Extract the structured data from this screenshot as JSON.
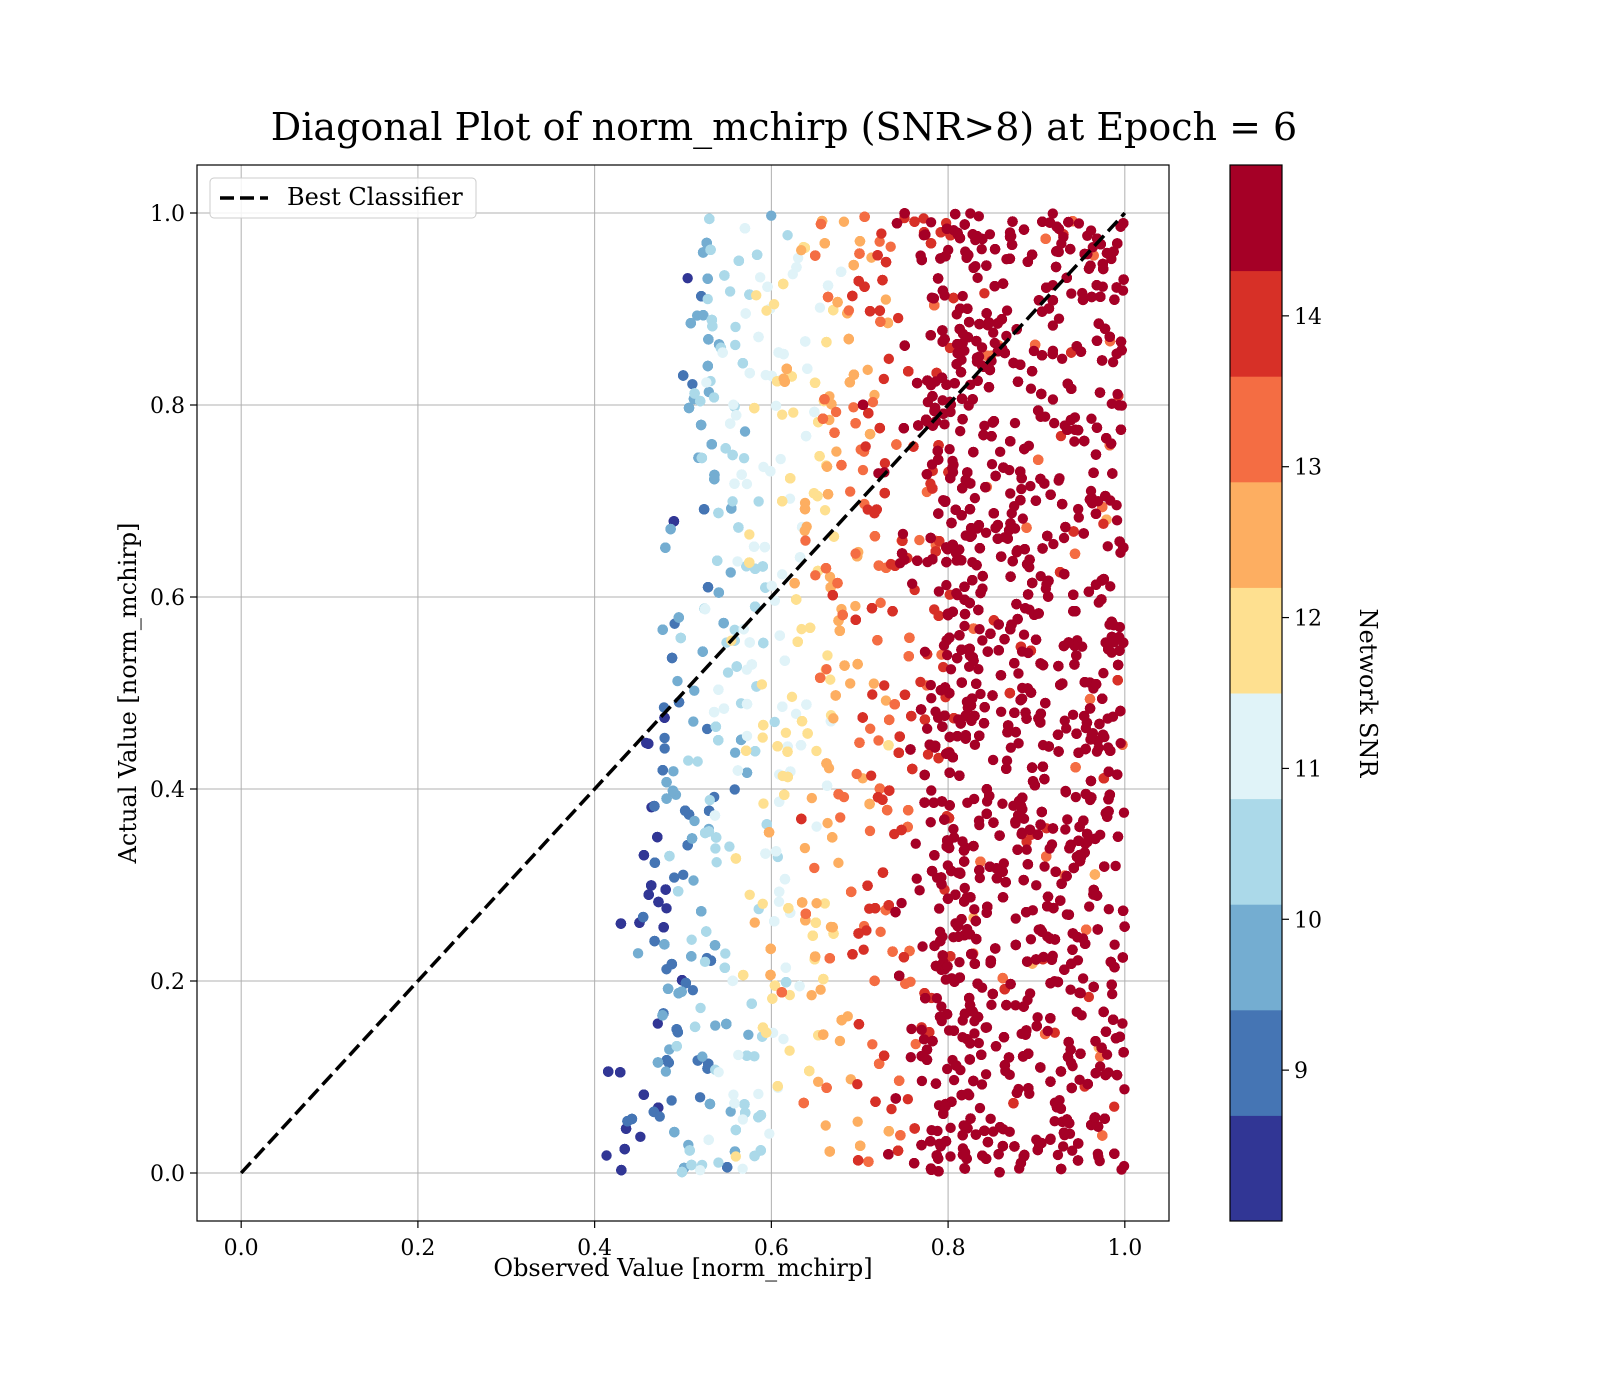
{
  "chart_data": {
    "type": "scatter",
    "title": "Diagonal Plot of norm_mchirp (SNR>8) at Epoch = 6",
    "xlabel": "Observed Value [norm_mchirp]",
    "ylabel": "Actual Value [norm_mchirp]",
    "xlim": [
      -0.05,
      1.05
    ],
    "ylim": [
      -0.05,
      1.05
    ],
    "x_ticks": [
      "0.0",
      "0.2",
      "0.4",
      "0.6",
      "0.8",
      "1.0"
    ],
    "y_ticks": [
      "0.0",
      "0.2",
      "0.4",
      "0.6",
      "0.8",
      "1.0"
    ],
    "grid": true,
    "legend": {
      "placement": "upper-left",
      "entries": [
        "Best Classifier"
      ]
    },
    "reference_line": {
      "name": "Best Classifier",
      "style": "dashed",
      "color": "#000000",
      "x": [
        0.0,
        1.0
      ],
      "y": [
        0.0,
        1.0
      ]
    },
    "colorbar": {
      "label": "Network SNR",
      "range": [
        8,
        15
      ],
      "ticks": [
        "9",
        "10",
        "11",
        "12",
        "13",
        "14"
      ],
      "colormap": "RdYlBu_r",
      "bounds": [
        8,
        8.7,
        9.4,
        10.1,
        10.8,
        11.5,
        12.2,
        12.9,
        13.6,
        14.3,
        15.0
      ],
      "colors": [
        "#313695",
        "#4575b4",
        "#74add1",
        "#abd9e9",
        "#e0f3f8",
        "#fee090",
        "#fdae61",
        "#f46d43",
        "#d73027",
        "#a50026"
      ]
    },
    "scatter_summary": {
      "point_count_estimate": 6000,
      "x_range": [
        0.38,
        1.0
      ],
      "y_range": [
        0.0,
        1.0
      ],
      "trend": "higher SNR points concentrated at higher observed values (0.8-1.0); low SNR points spread over 0.4-0.7"
    }
  }
}
